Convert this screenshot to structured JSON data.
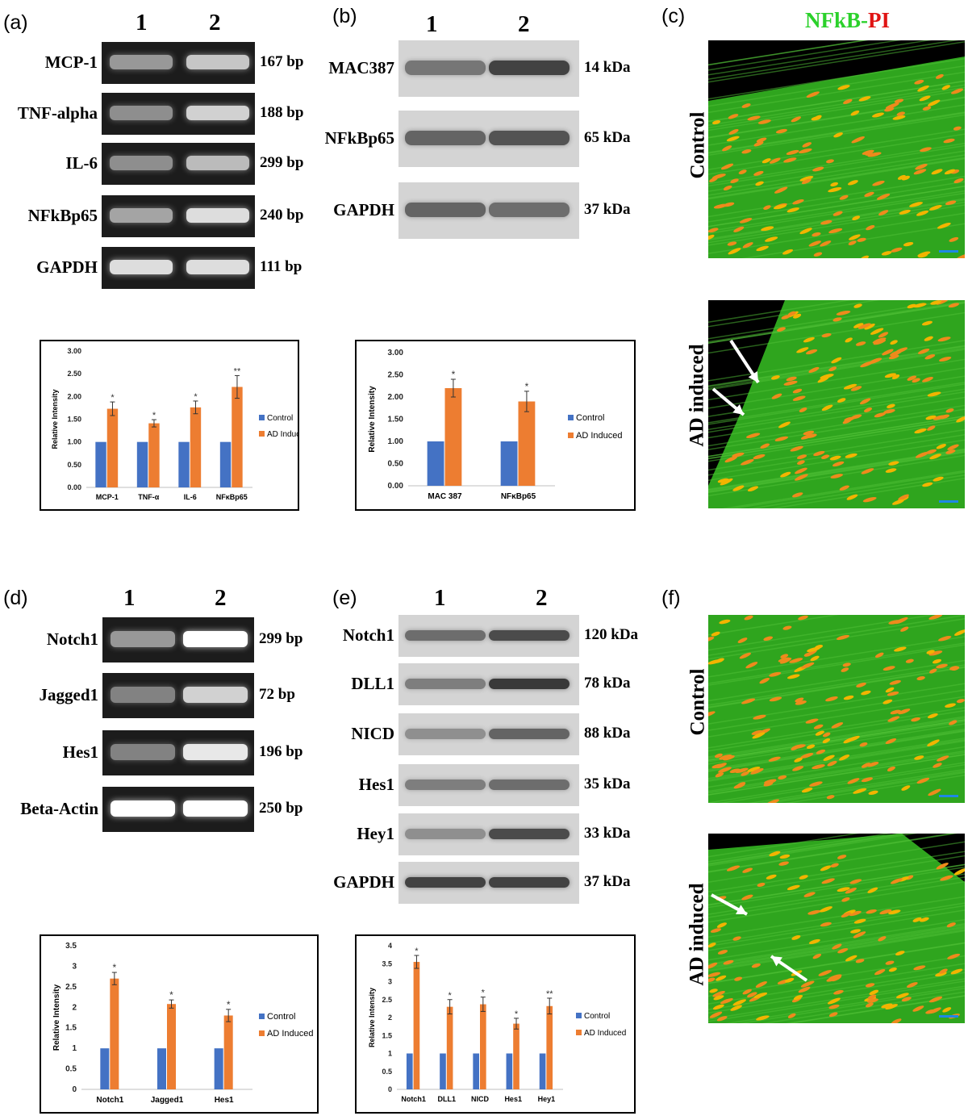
{
  "panels": {
    "a": {
      "label": "(a)",
      "lanes": [
        "1",
        "2"
      ],
      "genes": [
        {
          "name": "MCP-1",
          "size": "167 bp",
          "i1": 0.55,
          "i2": 0.75
        },
        {
          "name": "TNF-alpha",
          "size": "188 bp",
          "i1": 0.5,
          "i2": 0.8
        },
        {
          "name": "IL-6",
          "size": "299 bp",
          "i1": 0.5,
          "i2": 0.7
        },
        {
          "name": "NFkBp65",
          "size": "240 bp",
          "i1": 0.6,
          "i2": 0.85
        },
        {
          "name": "GAPDH",
          "size": "111 bp",
          "i1": 0.85,
          "i2": 0.85
        }
      ]
    },
    "b": {
      "label": "(b)",
      "lanes": [
        "1",
        "2"
      ],
      "proteins": [
        {
          "name": "MAC387",
          "size": "14 kDa",
          "i1": 0.55,
          "i2": 0.85
        },
        {
          "name": "NFkBp65",
          "size": "65 kDa",
          "i1": 0.65,
          "i2": 0.75
        },
        {
          "name": "GAPDH",
          "size": "37 kDa",
          "i1": 0.65,
          "i2": 0.6
        }
      ]
    },
    "c": {
      "label": "(c)",
      "title_green": "NFkB-",
      "title_red": "PI",
      "rows": [
        "Control",
        "AD  induced"
      ]
    },
    "d": {
      "label": "(d)",
      "lanes": [
        "1",
        "2"
      ],
      "genes": [
        {
          "name": "Notch1",
          "size": "299 bp",
          "i1": 0.55,
          "i2": 1.0
        },
        {
          "name": "Jagged1",
          "size": "72 bp",
          "i1": 0.45,
          "i2": 0.8
        },
        {
          "name": "Hes1",
          "size": "196 bp",
          "i1": 0.45,
          "i2": 0.9
        },
        {
          "name": "Beta-Actin",
          "size": "250 bp",
          "i1": 1.0,
          "i2": 1.0
        }
      ]
    },
    "e": {
      "label": "(e)",
      "lanes": [
        "1",
        "2"
      ],
      "proteins": [
        {
          "name": "Notch1",
          "size": "120 kDa",
          "i1": 0.6,
          "i2": 0.8
        },
        {
          "name": "DLL1",
          "size": "78 kDa",
          "i1": 0.5,
          "i2": 0.9
        },
        {
          "name": "NICD",
          "size": "88 kDa",
          "i1": 0.4,
          "i2": 0.65
        },
        {
          "name": "Hes1",
          "size": "35 kDa",
          "i1": 0.5,
          "i2": 0.6
        },
        {
          "name": "Hey1",
          "size": "33 kDa",
          "i1": 0.4,
          "i2": 0.8
        },
        {
          "name": "GAPDH",
          "size": "37 kDa",
          "i1": 0.85,
          "i2": 0.85
        }
      ]
    },
    "f": {
      "label": "(f)",
      "rows": [
        "Control",
        "AD induced"
      ]
    }
  },
  "chart_data": [
    {
      "type": "bar",
      "categories": [
        "MCP-1",
        "TNF-α",
        "IL-6",
        "NFκBp65"
      ],
      "series": [
        {
          "name": "Control",
          "values": [
            1.0,
            1.0,
            1.0,
            1.0
          ],
          "errors": [
            0,
            0,
            0,
            0
          ],
          "color": "#4472c4"
        },
        {
          "name": "AD Induced",
          "values": [
            1.73,
            1.41,
            1.76,
            2.21
          ],
          "errors": [
            0.15,
            0.08,
            0.14,
            0.25
          ],
          "color": "#ed7d31"
        }
      ],
      "significance": [
        "*",
        "*",
        "*",
        "**"
      ],
      "ylabel": "Relative Intensity",
      "ylim": [
        0,
        3.0
      ],
      "yticks": [
        "0.00",
        "0.50",
        "1.00",
        "1.50",
        "2.00",
        "2.50",
        "3.00"
      ],
      "legend": "right"
    },
    {
      "type": "bar",
      "categories": [
        "MAC 387",
        "NFκBp65"
      ],
      "series": [
        {
          "name": "Control",
          "values": [
            1.0,
            1.0
          ],
          "errors": [
            0,
            0
          ],
          "color": "#4472c4"
        },
        {
          "name": "AD Induced",
          "values": [
            2.2,
            1.9
          ],
          "errors": [
            0.2,
            0.23
          ],
          "color": "#ed7d31"
        }
      ],
      "significance": [
        "*",
        "*"
      ],
      "ylabel": "Relative Intensity",
      "ylim": [
        0,
        3.0
      ],
      "yticks": [
        "0.00",
        "0.50",
        "1.00",
        "1.50",
        "2.00",
        "2.50",
        "3.00"
      ],
      "legend": "right"
    },
    {
      "type": "bar",
      "categories": [
        "Notch1",
        "Jagged1",
        "Hes1"
      ],
      "series": [
        {
          "name": "Control",
          "values": [
            1.0,
            1.0,
            1.0
          ],
          "errors": [
            0,
            0,
            0
          ],
          "color": "#4472c4"
        },
        {
          "name": "AD Induced",
          "values": [
            2.7,
            2.08,
            1.8
          ],
          "errors": [
            0.15,
            0.1,
            0.15
          ],
          "color": "#ed7d31"
        }
      ],
      "significance": [
        "*",
        "*",
        "*"
      ],
      "ylabel": "Relative Intensity",
      "ylim": [
        0,
        3.5
      ],
      "yticks": [
        "0",
        "0.5",
        "1",
        "1.5",
        "2",
        "2.5",
        "3",
        "3.5"
      ],
      "legend": "right"
    },
    {
      "type": "bar",
      "categories": [
        "Notch1",
        "DLL1",
        "NICD",
        "Hes1",
        "Hey1"
      ],
      "series": [
        {
          "name": "Control",
          "values": [
            1.0,
            1.0,
            1.0,
            1.0,
            1.0
          ],
          "errors": [
            0,
            0,
            0,
            0,
            0
          ],
          "color": "#4472c4"
        },
        {
          "name": "AD Induced",
          "values": [
            3.55,
            2.3,
            2.37,
            1.83,
            2.32
          ],
          "errors": [
            0.18,
            0.2,
            0.2,
            0.15,
            0.22
          ],
          "color": "#ed7d31"
        }
      ],
      "significance": [
        "*",
        "*",
        "*",
        "*",
        "**"
      ],
      "ylabel": "Relative Intensity",
      "ylim": [
        0,
        4
      ],
      "yticks": [
        "0",
        "0.5",
        "1",
        "1.5",
        "2",
        "2.5",
        "3",
        "3.5",
        "4"
      ],
      "legend": "right"
    }
  ]
}
